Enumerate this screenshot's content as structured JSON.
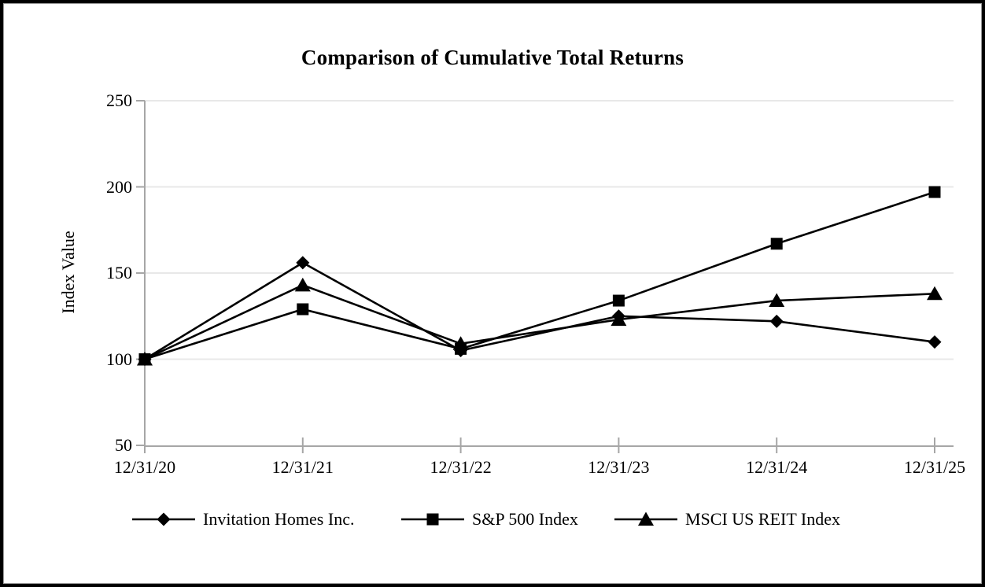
{
  "chart_data": {
    "type": "line",
    "title": "Comparison of Cumulative Total Returns",
    "xlabel": "",
    "ylabel": "Index Value",
    "categories": [
      "12/31/20",
      "12/31/21",
      "12/31/22",
      "12/31/23",
      "12/31/24",
      "12/31/25"
    ],
    "yticks": [
      250,
      200,
      150,
      100,
      50
    ],
    "ytick_labels": [
      "250",
      "200",
      "150",
      "100",
      "50"
    ],
    "ylim": [
      50,
      250
    ],
    "grid": "horizontal-light",
    "legend_position": "bottom",
    "series": [
      {
        "name": "Invitation Homes Inc.",
        "marker": "diamond",
        "color": "#000000",
        "values": [
          100,
          156,
          105,
          125,
          122,
          110
        ]
      },
      {
        "name": "S&P 500 Index",
        "marker": "square",
        "color": "#000000",
        "values": [
          100,
          129,
          106,
          134,
          167,
          197
        ]
      },
      {
        "name": "MSCI US REIT Index",
        "marker": "triangle",
        "color": "#000000",
        "values": [
          100,
          143,
          109,
          123,
          134,
          138
        ]
      }
    ]
  },
  "colors": {
    "background": "#ffffff",
    "border": "#000000",
    "axis": "#a6a6a6",
    "gridline": "#e8e8e8",
    "series_line": "#000000",
    "text": "#000000"
  }
}
